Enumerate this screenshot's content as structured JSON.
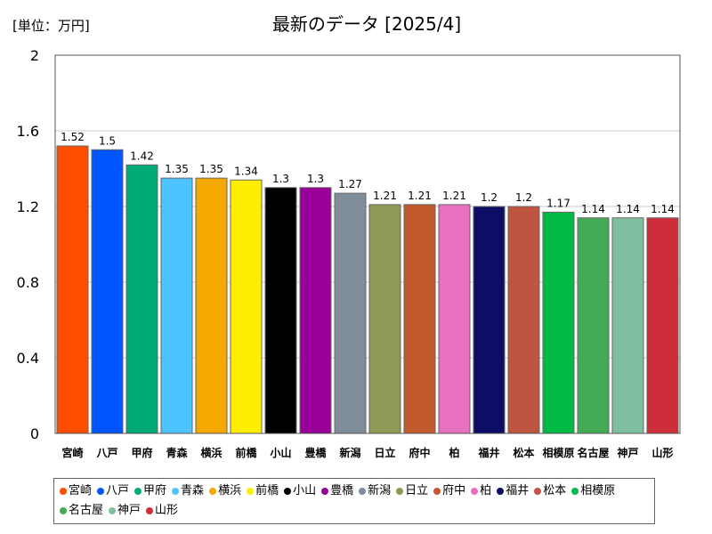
{
  "chart_data": {
    "type": "bar",
    "title": "最新のデータ [2025/4]",
    "unit_label": "[単位：万円]",
    "categories": [
      "宮崎",
      "八戸",
      "甲府",
      "青森",
      "横浜",
      "前橋",
      "小山",
      "豊橋",
      "新潟",
      "日立",
      "府中",
      "柏",
      "福井",
      "松本",
      "相模原",
      "名古屋",
      "神戸",
      "山形"
    ],
    "values": [
      1.52,
      1.5,
      1.42,
      1.35,
      1.35,
      1.34,
      1.3,
      1.3,
      1.27,
      1.21,
      1.21,
      1.21,
      1.2,
      1.2,
      1.17,
      1.14,
      1.14,
      1.14
    ],
    "value_labels": [
      "1.52",
      "1.5",
      "1.42",
      "1.35",
      "1.35",
      "1.34",
      "1.3",
      "1.3",
      "1.27",
      "1.21",
      "1.21",
      "1.21",
      "1.2",
      "1.2",
      "1.17",
      "1.14",
      "1.14",
      "1.14"
    ],
    "colors": [
      "#ff4d00",
      "#0055ff",
      "#00aa77",
      "#4dc3ff",
      "#f5a800",
      "#ffee00",
      "#000000",
      "#990099",
      "#7f8c99",
      "#8f9955",
      "#c25a2d",
      "#e870c0",
      "#0d0d66",
      "#bf5540",
      "#00bb44",
      "#44aa55",
      "#80c0a0",
      "#cc2e3a"
    ],
    "yticks": [
      "0",
      "0.4",
      "0.8",
      "1.2",
      "1.6",
      "2"
    ],
    "ylim": [
      0,
      2
    ],
    "grid": true,
    "legend": "bottom"
  }
}
